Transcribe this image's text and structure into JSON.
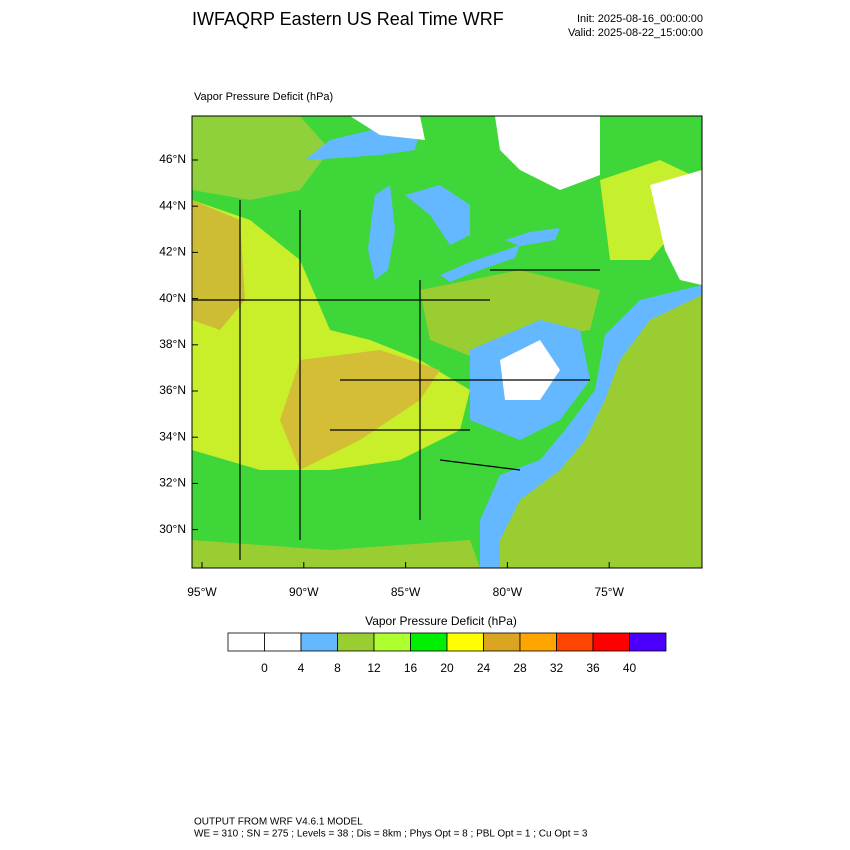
{
  "title": "IWFAQRP Eastern US Real Time WRF",
  "init": "Init: 2025-08-16_00:00:00",
  "valid": "Valid: 2025-08-22_15:00:00",
  "map": {
    "label": "Vapor Pressure Deficit   (hPa)",
    "lat_labels": [
      "46°N",
      "44°N",
      "42°N",
      "40°N",
      "38°N",
      "36°N",
      "34°N",
      "32°N",
      "30°N"
    ],
    "lon_labels": [
      "95°W",
      "90°W",
      "85°W",
      "80°W",
      "75°W"
    ]
  },
  "colorbar": {
    "title": "Vapor Pressure Deficit  (hPa)",
    "colors": [
      "#ffffff",
      "#ffffff",
      "#63b8ff",
      "#9acd32",
      "#adff2f",
      "#00ee00",
      "#ffff00",
      "#daa520",
      "#ffa500",
      "#ff4500",
      "#ff0000",
      "#4b00ff"
    ],
    "ticks": [
      0,
      4,
      8,
      12,
      16,
      20,
      24,
      28,
      32,
      36,
      40
    ]
  },
  "footer": {
    "line1": "OUTPUT FROM WRF V4.6.1 MODEL",
    "line2": "WE = 310 ; SN = 275 ; Levels = 38 ; Dis = 8km ; Phys Opt = 8 ; PBL Opt = 1 ; Cu Opt = 3"
  }
}
